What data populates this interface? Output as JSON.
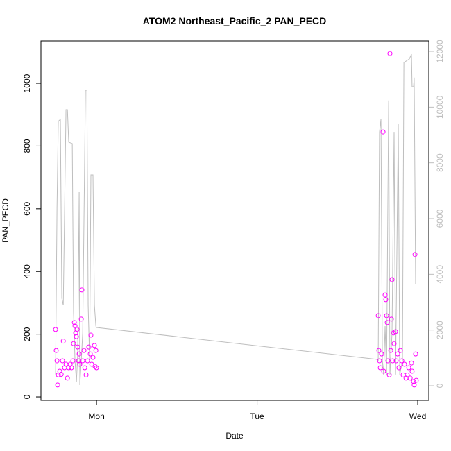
{
  "chart_data": {
    "type": "scatter",
    "title": "ATOM2 Northeast_Pacific_2 PAN_PECD",
    "xlabel": "Date",
    "ylabel": "PAN_PECD",
    "xlim": [
      0.654,
      3.069
    ],
    "xticks": [
      {
        "value": 1,
        "label": "Mon"
      },
      {
        "value": 2,
        "label": "Tue"
      },
      {
        "value": 3,
        "label": "Wed"
      }
    ],
    "ylim": [
      -11,
      1135
    ],
    "yticks": [
      0,
      200,
      400,
      600,
      800,
      1000
    ],
    "y2lim": [
      -523,
      12374
    ],
    "y2ticks": [
      0,
      2000,
      4000,
      6000,
      8000,
      10000,
      12000
    ],
    "series": [
      {
        "type": "scatter",
        "color": "#ff00ff",
        "x": [
          0.745,
          0.749,
          0.754,
          0.758,
          0.762,
          0.771,
          0.78,
          0.788,
          0.793,
          0.801,
          0.81,
          0.819,
          0.827,
          0.836,
          0.844,
          0.853,
          0.857,
          0.862,
          0.866,
          0.87,
          0.875,
          0.879,
          0.883,
          0.888,
          0.892,
          0.896,
          0.905,
          0.909,
          0.914,
          0.922,
          0.927,
          0.935,
          0.944,
          0.952,
          0.961,
          0.965,
          0.97,
          0.978,
          0.987,
          0.991,
          0.996,
          1.0,
          2.754,
          2.758,
          2.762,
          2.767,
          2.775,
          2.784,
          2.788,
          2.797,
          2.801,
          2.806,
          2.81,
          2.814,
          2.823,
          2.827,
          2.832,
          2.836,
          2.84,
          2.844,
          2.849,
          2.853,
          2.862,
          2.866,
          2.875,
          2.883,
          2.892,
          2.901,
          2.909,
          2.918,
          2.927,
          2.935,
          2.944,
          2.953,
          2.961,
          2.965,
          2.974,
          2.978,
          2.983,
          2.987,
          2.991
        ],
        "values": [
          215,
          148,
          115,
          38,
          70,
          82,
          72,
          115,
          178,
          93,
          104,
          60,
          93,
          104,
          93,
          115,
          170,
          237,
          226,
          204,
          192,
          215,
          159,
          115,
          137,
          104,
          248,
          341,
          115,
          148,
          93,
          70,
          115,
          159,
          137,
          197,
          104,
          126,
          164,
          97,
          148,
          93,
          259,
          148,
          115,
          93,
          137,
          845,
          82,
          325,
          310,
          259,
          237,
          115,
          70,
          1095,
          148,
          248,
          374,
          115,
          204,
          170,
          208,
          115,
          137,
          93,
          148,
          115,
          70,
          104,
          60,
          70,
          93,
          60,
          108,
          82,
          49,
          38,
          454,
          137,
          53
        ]
      },
      {
        "type": "line",
        "color": "#bebebe",
        "axis": "y2",
        "x": [
          0.745,
          0.754,
          0.762,
          0.775,
          0.784,
          0.793,
          0.81,
          0.819,
          0.827,
          0.849,
          0.857,
          0.866,
          0.875,
          0.883,
          0.892,
          0.896,
          0.905,
          0.914,
          0.931,
          0.94,
          0.948,
          0.957,
          0.965,
          0.978,
          0.987,
          0.996,
          1.0,
          2.745,
          2.754,
          2.762,
          2.771,
          2.78,
          2.788,
          2.797,
          2.806,
          2.819,
          2.827,
          2.84,
          2.853,
          2.862,
          2.879,
          2.888,
          2.905,
          2.914,
          2.948,
          2.961,
          2.965,
          2.974,
          2.978,
          2.987
        ],
        "values": [
          400,
          6370,
          9490,
          9560,
          3140,
          2890,
          9910,
          9910,
          8740,
          8690,
          2640,
          900,
          150,
          1150,
          6950,
          25,
          900,
          1890,
          10610,
          10610,
          2890,
          900,
          7570,
          7570,
          2890,
          2140,
          2090,
          950,
          900,
          9110,
          9560,
          900,
          400,
          2140,
          400,
          10240,
          400,
          1890,
          9110,
          400,
          9410,
          400,
          900,
          11600,
          11730,
          11900,
          10730,
          10730,
          11060,
          3640
        ]
      }
    ]
  }
}
